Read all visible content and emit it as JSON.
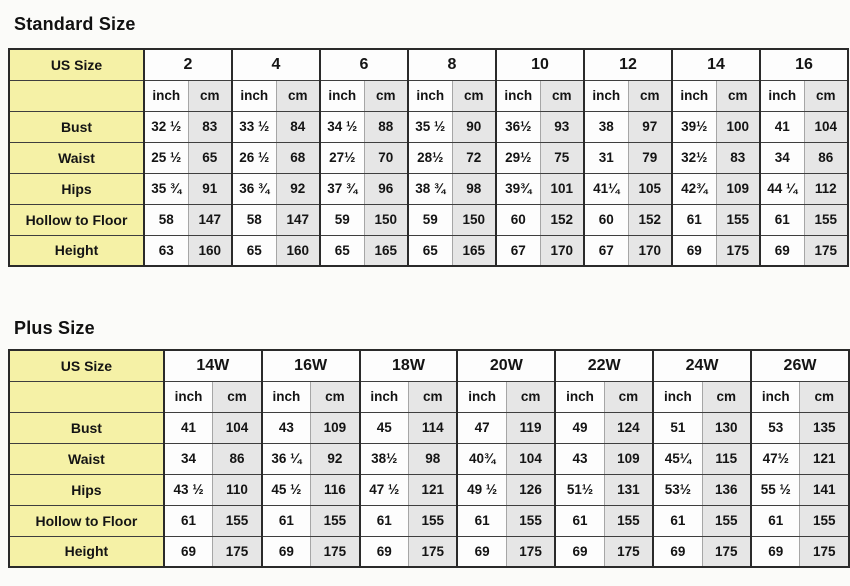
{
  "colors": {
    "label_bg": "#f5f1a6",
    "cell_shaded": "#e6e6e6",
    "cell_bg": "#fdfdfd",
    "border_dark": "#2a2a2a",
    "border_light": "#a6a6a6",
    "page_bg": "#fbfbf9",
    "ink": "#141414"
  },
  "chart_data": [
    {
      "type": "table",
      "title": "Standard Size",
      "corner_label": "US Size",
      "unit_labels": [
        "inch",
        "cm"
      ],
      "sizes": [
        "2",
        "4",
        "6",
        "8",
        "10",
        "12",
        "14",
        "16"
      ],
      "rows": [
        {
          "label": "Bust",
          "values": [
            [
              "32 ½",
              "83"
            ],
            [
              "33 ½",
              "84"
            ],
            [
              "34 ½",
              "88"
            ],
            [
              "35 ½",
              "90"
            ],
            [
              "36½",
              "93"
            ],
            [
              "38",
              "97"
            ],
            [
              "39½",
              "100"
            ],
            [
              "41",
              "104"
            ]
          ]
        },
        {
          "label": "Waist",
          "values": [
            [
              "25 ½",
              "65"
            ],
            [
              "26 ½",
              "68"
            ],
            [
              "27½",
              "70"
            ],
            [
              "28½",
              "72"
            ],
            [
              "29½",
              "75"
            ],
            [
              "31",
              "79"
            ],
            [
              "32½",
              "83"
            ],
            [
              "34",
              "86"
            ]
          ]
        },
        {
          "label": "Hips",
          "values": [
            [
              "35 ¾",
              "91"
            ],
            [
              "36 ¾",
              "92"
            ],
            [
              "37 ¾",
              "96"
            ],
            [
              "38 ¾",
              "98"
            ],
            [
              "39¾",
              "101"
            ],
            [
              "41¼",
              "105"
            ],
            [
              "42¾",
              "109"
            ],
            [
              "44 ¼",
              "112"
            ]
          ]
        },
        {
          "label": "Hollow to Floor",
          "values": [
            [
              "58",
              "147"
            ],
            [
              "58",
              "147"
            ],
            [
              "59",
              "150"
            ],
            [
              "59",
              "150"
            ],
            [
              "60",
              "152"
            ],
            [
              "60",
              "152"
            ],
            [
              "61",
              "155"
            ],
            [
              "61",
              "155"
            ]
          ]
        },
        {
          "label": "Height",
          "values": [
            [
              "63",
              "160"
            ],
            [
              "65",
              "160"
            ],
            [
              "65",
              "165"
            ],
            [
              "65",
              "165"
            ],
            [
              "67",
              "170"
            ],
            [
              "67",
              "170"
            ],
            [
              "69",
              "175"
            ],
            [
              "69",
              "175"
            ]
          ]
        }
      ]
    },
    {
      "type": "table",
      "title": "Plus Size",
      "corner_label": "US Size",
      "unit_labels": [
        "inch",
        "cm"
      ],
      "sizes": [
        "14W",
        "16W",
        "18W",
        "20W",
        "22W",
        "24W",
        "26W"
      ],
      "rows": [
        {
          "label": "Bust",
          "values": [
            [
              "41",
              "104"
            ],
            [
              "43",
              "109"
            ],
            [
              "45",
              "114"
            ],
            [
              "47",
              "119"
            ],
            [
              "49",
              "124"
            ],
            [
              "51",
              "130"
            ],
            [
              "53",
              "135"
            ]
          ]
        },
        {
          "label": "Waist",
          "values": [
            [
              "34",
              "86"
            ],
            [
              "36 ¼",
              "92"
            ],
            [
              "38½",
              "98"
            ],
            [
              "40¾",
              "104"
            ],
            [
              "43",
              "109"
            ],
            [
              "45¼",
              "115"
            ],
            [
              "47½",
              "121"
            ]
          ]
        },
        {
          "label": "Hips",
          "values": [
            [
              "43 ½",
              "110"
            ],
            [
              "45 ½",
              "116"
            ],
            [
              "47 ½",
              "121"
            ],
            [
              "49 ½",
              "126"
            ],
            [
              "51½",
              "131"
            ],
            [
              "53½",
              "136"
            ],
            [
              "55 ½",
              "141"
            ]
          ]
        },
        {
          "label": "Hollow to Floor",
          "values": [
            [
              "61",
              "155"
            ],
            [
              "61",
              "155"
            ],
            [
              "61",
              "155"
            ],
            [
              "61",
              "155"
            ],
            [
              "61",
              "155"
            ],
            [
              "61",
              "155"
            ],
            [
              "61",
              "155"
            ]
          ]
        },
        {
          "label": "Height",
          "values": [
            [
              "69",
              "175"
            ],
            [
              "69",
              "175"
            ],
            [
              "69",
              "175"
            ],
            [
              "69",
              "175"
            ],
            [
              "69",
              "175"
            ],
            [
              "69",
              "175"
            ],
            [
              "69",
              "175"
            ]
          ]
        }
      ]
    }
  ]
}
